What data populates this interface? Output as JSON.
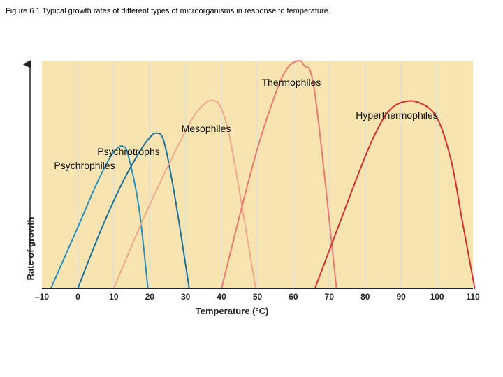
{
  "caption": "Figure 6.1 Typical growth rates of different types of microorganisms in response to temperature.",
  "chart_data": {
    "type": "line",
    "title": "",
    "xlabel": "Temperature (°C)",
    "ylabel": "Rate of growth",
    "xlim": [
      -10,
      110
    ],
    "ylim": [
      0,
      100
    ],
    "x_ticks": [
      -10,
      0,
      10,
      20,
      30,
      40,
      50,
      60,
      70,
      80,
      90,
      100,
      110
    ],
    "grid": "vertical",
    "background_color": "#f7e4b0",
    "grid_color": "#e4e0cf",
    "series": [
      {
        "name": "Psychrophiles",
        "color": "#2a8fbf",
        "points": [
          [
            -7.5,
            0
          ],
          [
            0,
            28
          ],
          [
            5,
            47
          ],
          [
            9,
            60
          ],
          [
            11,
            64
          ],
          [
            12.5,
            65
          ],
          [
            14,
            61
          ],
          [
            17,
            37
          ],
          [
            19.5,
            0
          ]
        ]
      },
      {
        "name": "Psychrotrophs",
        "color": "#1f6f9c",
        "points": [
          [
            0,
            0
          ],
          [
            6,
            25
          ],
          [
            12,
            47
          ],
          [
            17,
            62
          ],
          [
            20,
            69
          ],
          [
            22,
            71
          ],
          [
            24,
            67
          ],
          [
            27,
            42
          ],
          [
            31,
            0
          ]
        ]
      },
      {
        "name": "Mesophiles",
        "color": "#f0a890",
        "points": [
          [
            10,
            0
          ],
          [
            18,
            31
          ],
          [
            26,
            59
          ],
          [
            32,
            78
          ],
          [
            35,
            84
          ],
          [
            37.5,
            86
          ],
          [
            40,
            82
          ],
          [
            43,
            63
          ],
          [
            49.5,
            0
          ]
        ]
      },
      {
        "name": "Thermophiles",
        "color": "#ea7a72",
        "points": [
          [
            40,
            0
          ],
          [
            45,
            33
          ],
          [
            50,
            64
          ],
          [
            55,
            89
          ],
          [
            58,
            100
          ],
          [
            61,
            104
          ],
          [
            63,
            102
          ],
          [
            66,
            89
          ],
          [
            72,
            0
          ]
        ]
      },
      {
        "name": "Hyperthermophiles",
        "color": "#d62e2e",
        "points": [
          [
            66,
            0
          ],
          [
            72,
            26
          ],
          [
            78,
            52
          ],
          [
            82,
            68
          ],
          [
            86,
            80
          ],
          [
            90,
            85
          ],
          [
            95,
            85
          ],
          [
            100,
            78
          ],
          [
            104,
            58
          ],
          [
            107,
            31
          ],
          [
            110.5,
            0
          ]
        ]
      }
    ]
  }
}
